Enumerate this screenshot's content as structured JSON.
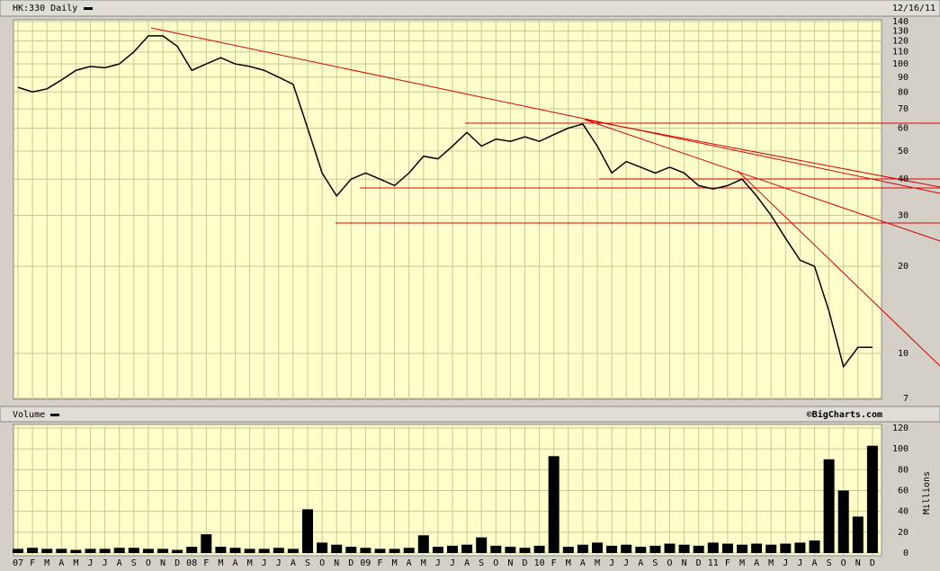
{
  "chart_data": [
    {
      "type": "line",
      "title": "HK:330 Daily",
      "date": "12/16/11",
      "watermark": "©BigCharts.com",
      "categories": [
        "07",
        "F",
        "M",
        "A",
        "M",
        "J",
        "J",
        "A",
        "S",
        "O",
        "N",
        "D",
        "08",
        "F",
        "M",
        "A",
        "M",
        "J",
        "J",
        "A",
        "S",
        "O",
        "N",
        "D",
        "09",
        "F",
        "M",
        "A",
        "M",
        "J",
        "J",
        "A",
        "S",
        "O",
        "N",
        "D",
        "10",
        "F",
        "M",
        "A",
        "M",
        "J",
        "J",
        "A",
        "S",
        "O",
        "N",
        "D",
        "11",
        "F",
        "M",
        "A",
        "M",
        "J",
        "J",
        "A",
        "S",
        "O",
        "N",
        "D"
      ],
      "values": [
        83,
        80,
        82,
        88,
        95,
        98,
        97,
        100,
        110,
        125,
        125,
        115,
        95,
        100,
        105,
        100,
        98,
        95,
        90,
        85,
        60,
        42,
        35,
        40,
        42,
        40,
        38,
        42,
        48,
        47,
        52,
        58,
        52,
        55,
        54,
        56,
        54,
        57,
        60,
        62,
        52,
        42,
        46,
        44,
        42,
        44,
        42,
        38,
        37,
        38,
        40,
        35,
        30,
        25,
        21,
        20,
        14,
        9,
        10.5,
        10.5
      ],
      "color": "#000000",
      "log_scale": true,
      "grid": true,
      "ylim": [
        7,
        140
      ],
      "yticks": [
        140,
        130,
        120,
        110,
        100,
        90,
        80,
        70,
        60,
        50,
        40,
        30,
        20,
        10,
        7
      ]
    },
    {
      "type": "bar",
      "title": "Volume",
      "y_label": "Millions",
      "values": [
        4,
        5,
        4,
        4,
        3,
        4,
        4,
        5,
        5,
        4,
        4,
        3,
        6,
        18,
        6,
        5,
        4,
        4,
        5,
        4,
        42,
        10,
        8,
        6,
        5,
        4,
        4,
        5,
        17,
        6,
        7,
        8,
        15,
        7,
        6,
        5,
        7,
        93,
        6,
        8,
        10,
        7,
        8,
        6,
        7,
        9,
        8,
        7,
        10,
        9,
        8,
        9,
        8,
        9,
        10,
        12,
        90,
        60,
        35,
        103
      ],
      "color": "#000000",
      "grid": true,
      "ylim": [
        0,
        120
      ],
      "yticks": [
        0,
        20,
        40,
        60,
        80,
        100,
        120
      ]
    }
  ]
}
